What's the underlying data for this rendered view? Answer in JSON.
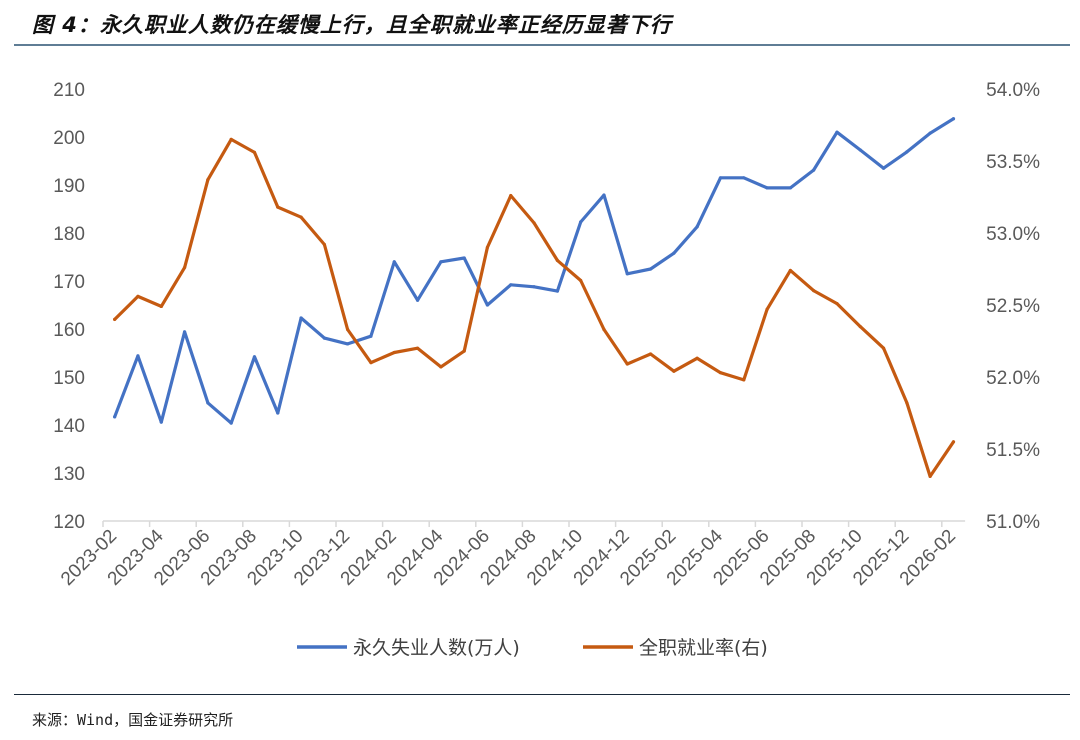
{
  "title": "图 4：永久职业人数仍在缓慢上行，且全职就业率正经历显著下行",
  "source": "来源：Wind，国金证券研究所",
  "chart_data": {
    "type": "line",
    "title": "图 4：永久职业人数仍在缓慢上行，且全职就业率正经历显著下行",
    "categories": [
      "2023-02",
      "2023-03",
      "2023-04",
      "2023-05",
      "2023-06",
      "2023-07",
      "2023-08",
      "2023-09",
      "2023-10",
      "2023-11",
      "2023-12",
      "2024-01",
      "2024-02",
      "2024-03",
      "2024-04",
      "2024-05",
      "2024-06",
      "2024-07",
      "2024-08",
      "2024-09",
      "2024-10",
      "2024-11",
      "2024-12",
      "2025-01",
      "2025-02",
      "2025-03",
      "2025-04",
      "2025-05",
      "2025-06",
      "2025-07",
      "2025-08",
      "2025-09",
      "2025-10",
      "2025-11",
      "2025-12",
      "2026-01",
      "2026-02"
    ],
    "x_tick_labels": [
      "2023-02",
      "2023-04",
      "2023-06",
      "2023-08",
      "2023-10",
      "2023-12",
      "2024-02",
      "2024-04",
      "2024-06",
      "2024-08",
      "2024-10",
      "2024-12",
      "2025-02",
      "2025-04",
      "2025-06",
      "2025-08",
      "2025-10",
      "2025-12",
      "2026-02"
    ],
    "y_left": {
      "range": [
        120,
        210
      ],
      "ticks": [
        "120",
        "130",
        "140",
        "150",
        "160",
        "170",
        "180",
        "190",
        "200",
        "210"
      ]
    },
    "y_right": {
      "range": [
        51.0,
        54.0
      ],
      "ticks": [
        "51.0%",
        "51.5%",
        "52.0%",
        "52.5%",
        "53.0%",
        "53.5%",
        "54.0%"
      ]
    },
    "grid": false,
    "legend_position": "bottom",
    "series": [
      {
        "name": "永久失业人数(万人)",
        "axis": "left",
        "color": "#4472c4",
        "values": [
          141.7,
          154.4,
          140.6,
          159.4,
          144.6,
          140.4,
          154.2,
          142.5,
          162.3,
          158.1,
          156.9,
          158.5,
          174.0,
          166.0,
          174.0,
          174.8,
          165.0,
          169.2,
          168.8,
          167.9,
          182.3,
          187.9,
          171.5,
          172.5,
          175.8,
          181.3,
          191.5,
          191.5,
          189.4,
          189.4,
          193.1,
          201.0,
          197.3,
          193.5,
          196.9,
          200.8,
          203.8
        ]
      },
      {
        "name": "全职就业率(右)",
        "axis": "right",
        "color": "#c55a11",
        "values": [
          52.4,
          52.56,
          52.49,
          52.76,
          53.37,
          53.65,
          53.56,
          53.18,
          53.11,
          52.92,
          52.33,
          52.1,
          52.17,
          52.2,
          52.07,
          52.18,
          52.9,
          53.26,
          53.07,
          52.81,
          52.67,
          52.33,
          52.09,
          52.16,
          52.04,
          52.13,
          52.03,
          51.98,
          52.47,
          52.74,
          52.6,
          52.51,
          52.35,
          52.2,
          51.82,
          51.31,
          51.55
        ]
      }
    ]
  }
}
